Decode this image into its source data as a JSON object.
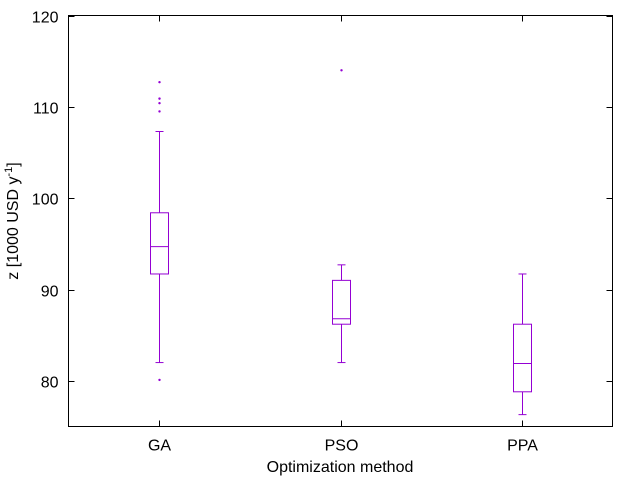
{
  "chart_data": {
    "type": "box",
    "title": "",
    "xlabel": "Optimization method",
    "ylabel": {
      "main": "z [1000 USD y",
      "superscript": "-1",
      "close": "]"
    },
    "ylim": [
      75,
      120
    ],
    "yticks": [
      80,
      90,
      100,
      110,
      120
    ],
    "ytick_labels": [
      "80",
      "90",
      "100",
      "110",
      "120"
    ],
    "categories": [
      "GA",
      "PSO",
      "PPA"
    ],
    "grid": false,
    "color": "#9400d3",
    "boxes": [
      {
        "category": "GA",
        "whisker_low": 82.0,
        "q1": 91.7,
        "median": 94.7,
        "q3": 98.4,
        "whisker_high": 107.3,
        "outliers": [
          80.1,
          109.5,
          110.4,
          110.9,
          112.7
        ]
      },
      {
        "category": "PSO",
        "whisker_low": 82.0,
        "q1": 86.2,
        "median": 86.8,
        "q3": 91.0,
        "whisker_high": 92.7,
        "outliers": [
          114.0
        ]
      },
      {
        "category": "PPA",
        "whisker_low": 76.3,
        "q1": 78.8,
        "median": 81.9,
        "q3": 86.2,
        "whisker_high": 91.7,
        "outliers": []
      }
    ]
  }
}
